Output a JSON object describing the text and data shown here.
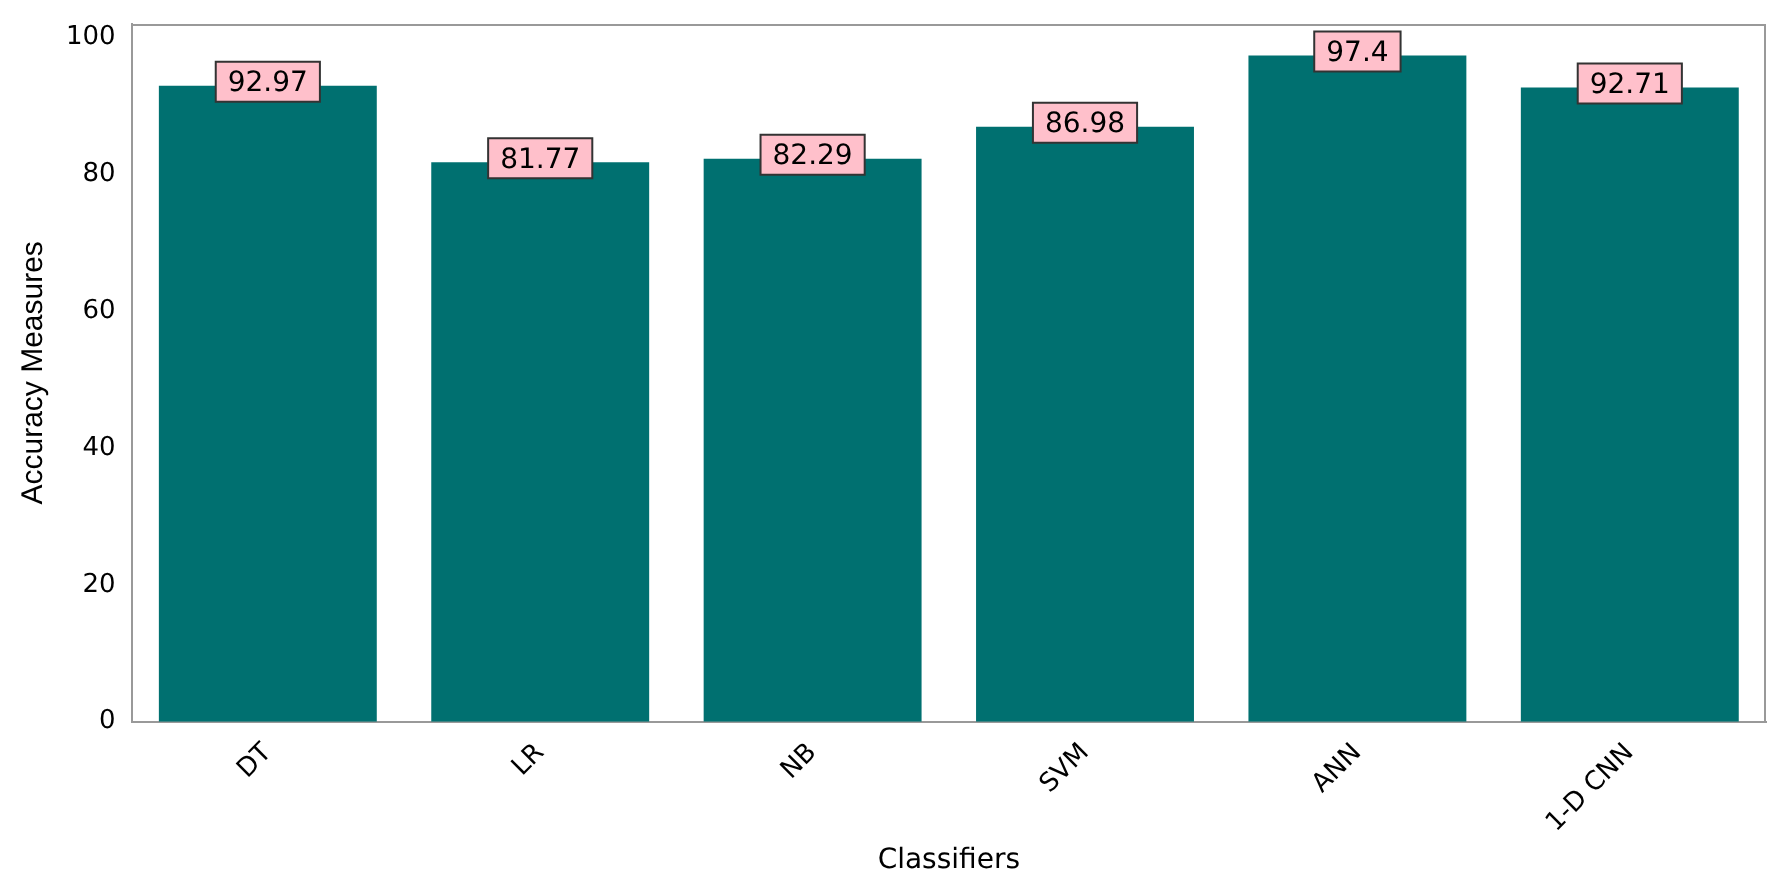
{
  "chart_data": {
    "type": "bar",
    "xlabel": "Classifiers",
    "ylabel": "Accuracy Measures",
    "categories": [
      "DT",
      "LR",
      "NB",
      "SVM",
      "ANN",
      "1-D CNN"
    ],
    "values": [
      92.97,
      81.77,
      82.29,
      86.98,
      97.4,
      92.71
    ],
    "color": "#007070",
    "ylim": [
      0,
      102
    ],
    "yticks": [
      0,
      20,
      40,
      60,
      80,
      100
    ],
    "grid": false,
    "legend": false,
    "data_labels": true
  }
}
